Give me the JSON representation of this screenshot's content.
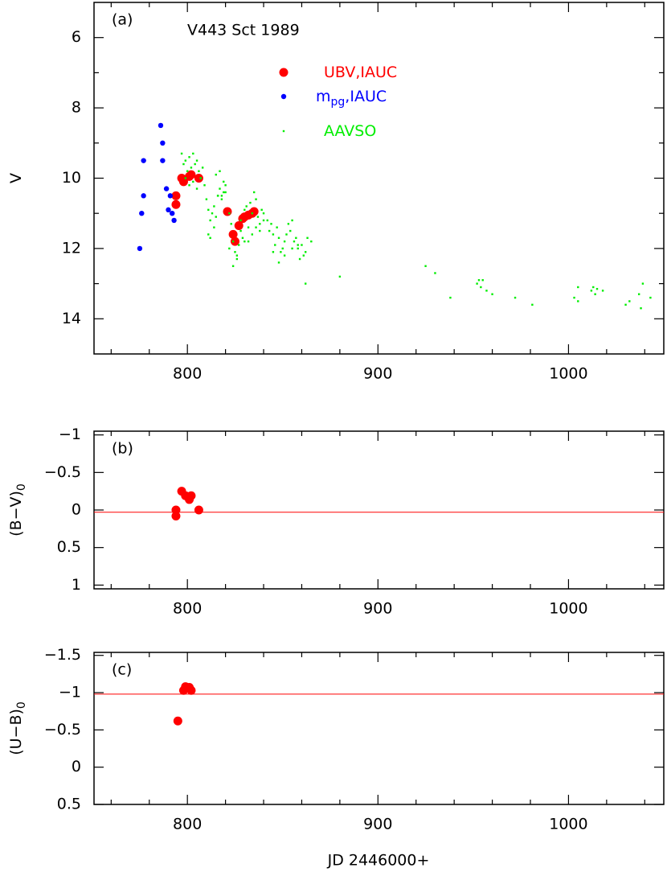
{
  "chart_data": [
    {
      "type": "scatter",
      "panel_label": "(a)",
      "title": "V443 Sct 1989",
      "ylabel": "V",
      "xlim": [
        751,
        1050
      ],
      "xticks": [
        800,
        900,
        1000
      ],
      "xminorticks": [
        760,
        780,
        820,
        840,
        860,
        880,
        920,
        940,
        960,
        980,
        1020,
        1040
      ],
      "ylim": [
        5,
        15
      ],
      "y_inverted": true,
      "yticks": [
        6,
        8,
        10,
        12,
        14
      ],
      "yminorticks": [
        7,
        9,
        11,
        13
      ],
      "series": [
        {
          "name": "UBV,IAUC",
          "color": "#ff0000",
          "marker": "large-dot",
          "x": [
            797,
            798,
            794,
            794,
            801,
            802,
            806,
            821,
            824,
            825,
            827,
            829,
            830,
            832,
            834,
            835
          ],
          "values": [
            10.0,
            10.1,
            10.5,
            10.75,
            9.95,
            9.9,
            10.0,
            10.95,
            11.6,
            11.8,
            11.35,
            11.15,
            11.1,
            11.05,
            11.0,
            10.95
          ]
        },
        {
          "name": "m",
          "name_sub": "pg",
          "name_rest": ",IAUC",
          "color": "#0000ff",
          "marker": "dot",
          "x": [
            775,
            776,
            777,
            777,
            786,
            787,
            787,
            789,
            790,
            791,
            792,
            793
          ],
          "values": [
            12.0,
            11.0,
            10.5,
            9.5,
            8.5,
            9.0,
            9.5,
            10.3,
            10.9,
            10.5,
            11.0,
            11.2
          ]
        },
        {
          "name": "AAVSO",
          "color": "#00ee00",
          "marker": "point",
          "x": [
            797,
            798,
            799,
            800,
            801,
            802,
            803,
            804,
            805,
            806,
            807,
            808,
            799,
            801,
            803,
            805,
            807,
            809,
            810,
            811,
            812,
            813,
            814,
            815,
            811,
            812,
            814,
            816,
            817,
            818,
            819,
            820,
            815,
            817,
            819,
            816,
            818,
            820,
            822,
            823,
            824,
            825,
            826,
            827,
            828,
            829,
            830,
            822,
            824,
            826,
            828,
            830,
            831,
            832,
            833,
            834,
            835,
            836,
            837,
            838,
            839,
            840,
            832,
            834,
            836,
            838,
            840,
            842,
            843,
            844,
            845,
            846,
            847,
            848,
            849,
            850,
            851,
            852,
            853,
            854,
            855,
            856,
            857,
            858,
            859,
            860,
            861,
            862,
            863,
            865,
            845,
            848,
            851,
            855,
            858,
            862,
            880,
            925,
            930,
            938,
            952,
            953,
            954,
            955,
            957,
            960,
            972,
            981,
            1003,
            1005,
            1005,
            1012,
            1013,
            1014,
            1015,
            1018,
            1030,
            1032,
            1037,
            1038,
            1039,
            1043
          ],
          "values": [
            9.3,
            9.6,
            9.5,
            9.8,
            9.4,
            9.7,
            9.3,
            9.6,
            9.5,
            9.8,
            10.0,
            9.7,
            10.0,
            10.2,
            10.1,
            10.3,
            10.0,
            10.2,
            10.6,
            10.9,
            11.2,
            11.0,
            11.4,
            11.1,
            11.6,
            11.7,
            10.8,
            10.5,
            10.3,
            10.6,
            10.4,
            10.2,
            9.9,
            9.8,
            10.1,
            10.5,
            10.5,
            10.4,
            11.0,
            11.3,
            11.8,
            12.1,
            12.3,
            11.9,
            11.5,
            11.7,
            11.8,
            12.0,
            12.5,
            12.2,
            11.2,
            10.9,
            10.8,
            11.4,
            10.7,
            11.0,
            10.4,
            10.6,
            11.1,
            11.3,
            10.9,
            11.2,
            11.8,
            11.6,
            11.4,
            11.5,
            11.0,
            11.2,
            11.5,
            11.3,
            11.6,
            11.9,
            11.4,
            11.7,
            12.1,
            12.0,
            11.8,
            11.6,
            11.3,
            11.5,
            11.2,
            11.8,
            11.7,
            12.0,
            12.3,
            11.9,
            12.2,
            12.1,
            11.7,
            11.8,
            12.1,
            12.4,
            12.2,
            12.0,
            11.9,
            13.0,
            12.8,
            12.5,
            12.7,
            13.4,
            13.0,
            12.9,
            13.1,
            12.9,
            13.2,
            13.3,
            13.4,
            13.6,
            13.4,
            13.1,
            13.5,
            13.2,
            13.1,
            13.3,
            13.15,
            13.2,
            13.6,
            13.5,
            13.3,
            13.7,
            13.0,
            13.4
          ]
        }
      ]
    },
    {
      "type": "scatter",
      "panel_label": "(b)",
      "ylabel": "(B−V)",
      "ylabel_sub": "0",
      "xlim": [
        751,
        1050
      ],
      "xticks": [
        800,
        900,
        1000
      ],
      "xminorticks": [
        760,
        780,
        820,
        840,
        860,
        880,
        920,
        940,
        960,
        980,
        1020,
        1040
      ],
      "ylim": [
        -1.05,
        1.05
      ],
      "y_inverted": true,
      "yticks": [
        {
          "value": -1,
          "label": "−1"
        },
        {
          "value": -0.5,
          "label": "−0.5"
        },
        0,
        0.5,
        1
      ],
      "hline": 0.03,
      "hline_color": "#ff0000",
      "series": [
        {
          "color": "#ff0000",
          "marker": "large-dot",
          "x": [
            794,
            794,
            797,
            799,
            801,
            802,
            806
          ],
          "values": [
            0.0,
            0.08,
            -0.25,
            -0.19,
            -0.14,
            -0.19,
            0.0
          ]
        }
      ]
    },
    {
      "type": "scatter",
      "panel_label": "(c)",
      "ylabel": "(U−B)",
      "ylabel_sub": "0",
      "xlabel": "JD 2446000+",
      "xlim": [
        751,
        1050
      ],
      "xticks": [
        800,
        900,
        1000
      ],
      "xminorticks": [
        760,
        780,
        820,
        840,
        860,
        880,
        920,
        940,
        960,
        980,
        1020,
        1040
      ],
      "ylim": [
        -1.54,
        0.5
      ],
      "y_inverted": true,
      "yticks": [
        {
          "value": -1.5,
          "label": "−1.5"
        },
        {
          "value": -1,
          "label": "−1"
        },
        {
          "value": -0.5,
          "label": "−0.5"
        },
        0,
        0.5
      ],
      "hline": -0.98,
      "hline_color": "#ff0000",
      "series": [
        {
          "color": "#ff0000",
          "marker": "large-dot",
          "x": [
            795,
            799,
            798,
            801,
            802
          ],
          "values": [
            -0.62,
            -1.08,
            -1.03,
            -1.07,
            -1.03
          ]
        }
      ]
    }
  ]
}
